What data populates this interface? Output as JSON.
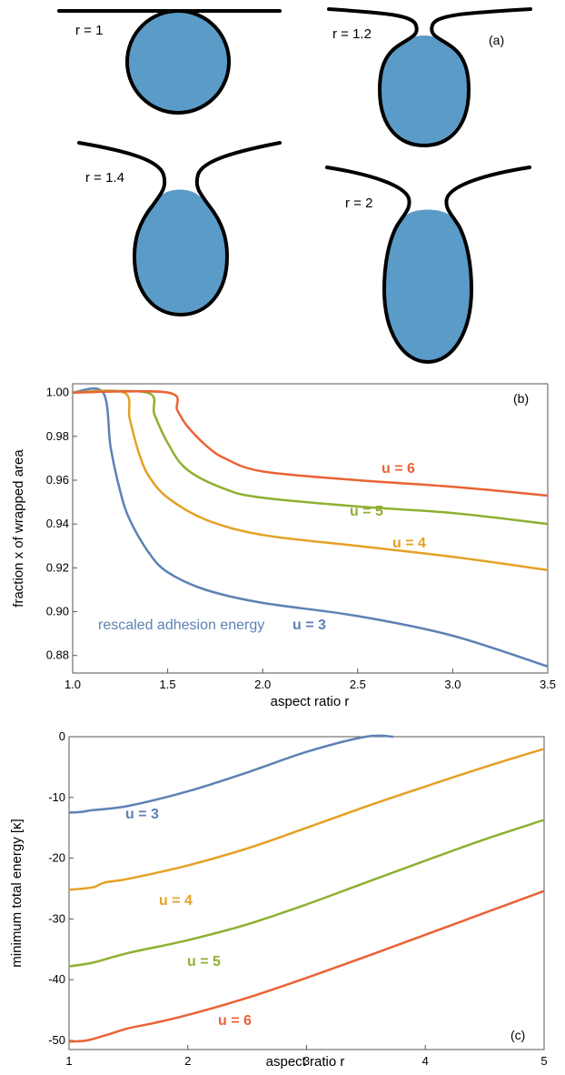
{
  "panel_a": {
    "panel_label": "(a)",
    "shapes": [
      {
        "label": "r = 1",
        "r": 1
      },
      {
        "label": "r = 1.2",
        "r": 1.2
      },
      {
        "label": "r = 1.4",
        "r": 1.4
      },
      {
        "label": "r = 2",
        "r": 2
      }
    ],
    "particle_color": "#5b9bc8",
    "membrane_color": "#000000"
  },
  "chart_data": [
    {
      "type": "line",
      "panel_label": "(b)",
      "xlabel": "aspect ratio r",
      "ylabel": "fraction x of wrapped area",
      "xlim": [
        1.0,
        3.5
      ],
      "ylim": [
        0.872,
        1.004
      ],
      "xticks": [
        "1.0",
        "1.5",
        "2.0",
        "2.5",
        "3.0",
        "3.5"
      ],
      "yticks": [
        "1.00",
        "0.98",
        "0.96",
        "0.94",
        "0.92",
        "0.90",
        "0.88"
      ],
      "grid": false,
      "series": [
        {
          "name": "u = 3",
          "label_prefix": "rescaled adhesion energy",
          "color": "#5d81b4",
          "x": [
            1.0,
            1.16,
            1.2,
            1.25,
            1.3,
            1.4,
            1.5,
            1.7,
            2.0,
            2.5,
            3.0,
            3.5
          ],
          "y": [
            1.0,
            1.0,
            0.975,
            0.955,
            0.942,
            0.927,
            0.918,
            0.91,
            0.904,
            0.898,
            0.889,
            0.875
          ]
        },
        {
          "name": "u = 4",
          "color": "#e5a024",
          "x": [
            1.0,
            1.27,
            1.3,
            1.35,
            1.4,
            1.5,
            1.7,
            2.0,
            2.5,
            3.0,
            3.5
          ],
          "y": [
            1.0,
            1.0,
            0.988,
            0.972,
            0.962,
            0.952,
            0.942,
            0.935,
            0.93,
            0.925,
            0.919
          ]
        },
        {
          "name": "u = 5",
          "color": "#8eb031",
          "x": [
            1.0,
            1.39,
            1.43,
            1.5,
            1.6,
            1.8,
            2.0,
            2.5,
            3.0,
            3.5
          ],
          "y": [
            1.0,
            1.0,
            0.99,
            0.977,
            0.965,
            0.956,
            0.952,
            0.948,
            0.945,
            0.94
          ]
        },
        {
          "name": "u = 6",
          "color": "#eb6235",
          "x": [
            1.0,
            1.5,
            1.55,
            1.6,
            1.7,
            1.8,
            2.0,
            2.5,
            3.0,
            3.5
          ],
          "y": [
            1.0,
            1.0,
            0.992,
            0.985,
            0.976,
            0.97,
            0.964,
            0.96,
            0.957,
            0.953
          ]
        }
      ]
    },
    {
      "type": "line",
      "panel_label": "(c)",
      "xlabel": "aspect ratio r",
      "ylabel": "minimum total energy   [κ]",
      "xlim": [
        1,
        5
      ],
      "ylim": [
        -51.5,
        0
      ],
      "xticks": [
        "1",
        "2",
        "3",
        "4",
        "5"
      ],
      "yticks": [
        "0",
        "-10",
        "-20",
        "-30",
        "-40",
        "-50"
      ],
      "grid": false,
      "series": [
        {
          "name": "u = 3",
          "color": "#5d81b4",
          "x": [
            1.0,
            1.1,
            1.2,
            1.5,
            2.0,
            2.5,
            3.0,
            3.5,
            3.73
          ],
          "y": [
            -12.5,
            -12.4,
            -12.1,
            -11.4,
            -9.0,
            -5.9,
            -2.5,
            0.7,
            0.1
          ]
        },
        {
          "name": "u = 4",
          "color": "#e5a024",
          "x": [
            1.0,
            1.2,
            1.3,
            1.5,
            2.0,
            2.5,
            3.0,
            3.5,
            4.0,
            4.5,
            5.0
          ],
          "y": [
            -25.2,
            -24.8,
            -24.0,
            -23.4,
            -21.2,
            -18.4,
            -15.0,
            -11.5,
            -8.2,
            -5.0,
            -2.0
          ]
        },
        {
          "name": "u = 5",
          "color": "#8eb031",
          "x": [
            1.0,
            1.2,
            1.5,
            2.0,
            2.5,
            3.0,
            3.5,
            4.0,
            4.5,
            5.0
          ],
          "y": [
            -37.8,
            -37.2,
            -35.6,
            -33.5,
            -30.9,
            -27.6,
            -24.0,
            -20.4,
            -16.9,
            -13.7
          ]
        },
        {
          "name": "u = 6",
          "color": "#eb6235",
          "x": [
            1.0,
            1.15,
            1.3,
            1.5,
            1.7,
            2.0,
            2.5,
            3.0,
            3.5,
            4.0,
            4.5,
            5.0
          ],
          "y": [
            -50.2,
            -50.0,
            -49.2,
            -48.0,
            -47.2,
            -45.8,
            -43.0,
            -39.7,
            -36.2,
            -32.6,
            -29.0,
            -25.4
          ]
        }
      ]
    }
  ]
}
